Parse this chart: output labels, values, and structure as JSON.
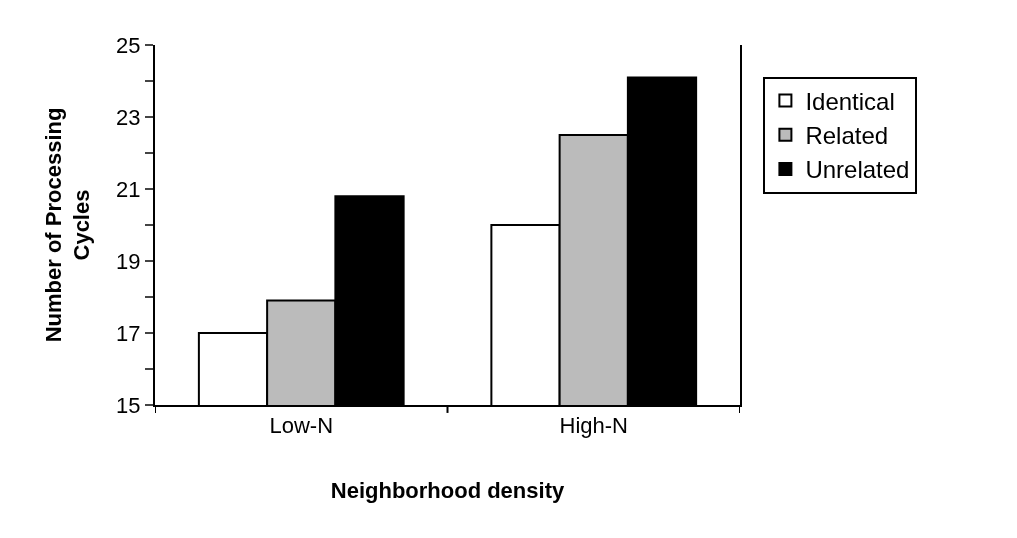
{
  "chart_data": {
    "type": "bar",
    "xlabel": "Neighborhood density",
    "ylabel": "Number of Processing\nCycles",
    "categories": [
      "Low-N",
      "High-N"
    ],
    "series": [
      {
        "name": "Identical",
        "color": "#ffffff",
        "values": [
          17.0,
          20.0
        ]
      },
      {
        "name": "Related",
        "color": "#bbbbbb",
        "values": [
          17.9,
          22.5
        ]
      },
      {
        "name": "Unrelated",
        "color": "#000000",
        "values": [
          20.8,
          24.1
        ]
      }
    ],
    "ylim": [
      15,
      25
    ],
    "yticks": [
      15,
      {
        "value": 16,
        "label": null
      },
      17,
      {
        "value": 18,
        "label": null
      },
      19,
      {
        "value": 20,
        "label": null
      },
      21,
      {
        "value": 22,
        "label": null
      },
      23,
      {
        "value": 24,
        "label": null
      },
      25
    ],
    "legend": "right"
  }
}
